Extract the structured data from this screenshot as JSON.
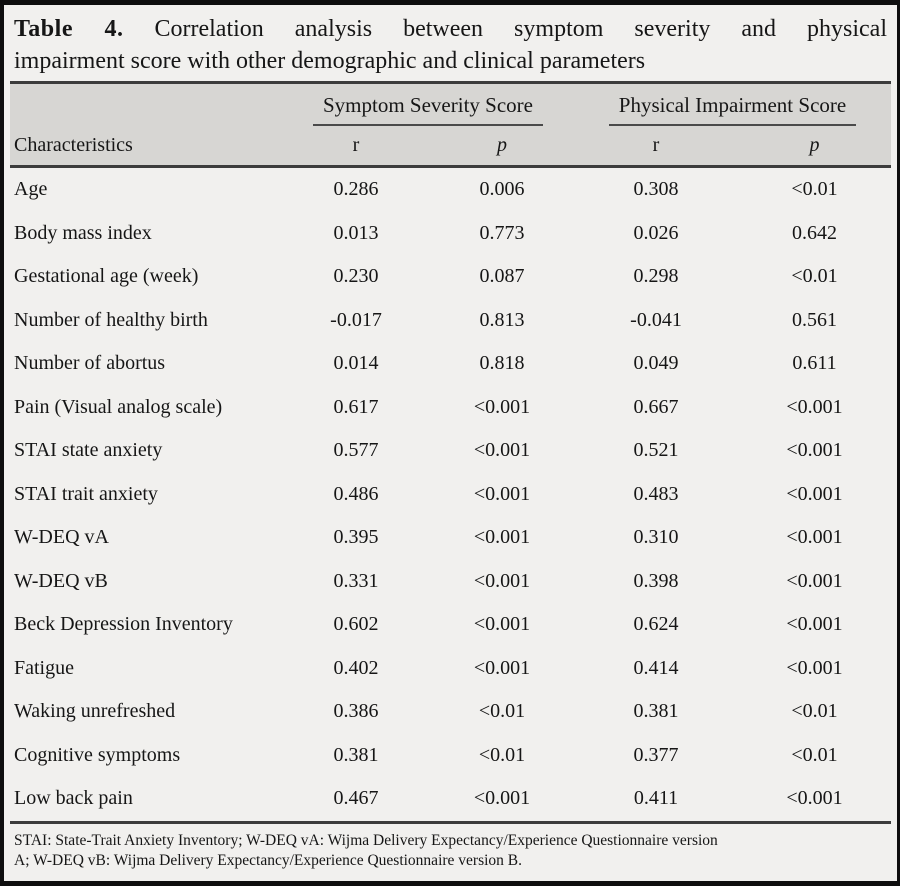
{
  "title": {
    "label": "Table 4.",
    "line1_rest": "Correlation analysis between symptom severity and physical",
    "line2": "impairment score with other demographic and clinical parameters"
  },
  "table": {
    "characteristics_header": "Characteristics",
    "groups": [
      {
        "label": "Symptom Severity Score",
        "sub": [
          "r",
          "p"
        ]
      },
      {
        "label": "Physical Impairment Score",
        "sub": [
          "r",
          "p"
        ]
      }
    ],
    "rows": [
      {
        "name": "Age",
        "values": [
          "0.286",
          "0.006",
          "0.308",
          "<0.01"
        ]
      },
      {
        "name": "Body mass index",
        "values": [
          "0.013",
          "0.773",
          "0.026",
          "0.642"
        ]
      },
      {
        "name": "Gestational age (week)",
        "values": [
          "0.230",
          "0.087",
          "0.298",
          "<0.01"
        ]
      },
      {
        "name": "Number of healthy birth",
        "values": [
          "-0.017",
          "0.813",
          "-0.041",
          "0.561"
        ]
      },
      {
        "name": "Number of abortus",
        "values": [
          "0.014",
          "0.818",
          "0.049",
          "0.611"
        ]
      },
      {
        "name": "Pain (Visual analog scale)",
        "values": [
          "0.617",
          "<0.001",
          "0.667",
          "<0.001"
        ]
      },
      {
        "name": "STAI state anxiety",
        "values": [
          "0.577",
          "<0.001",
          "0.521",
          "<0.001"
        ]
      },
      {
        "name": "STAI trait anxiety",
        "values": [
          "0.486",
          "<0.001",
          "0.483",
          "<0.001"
        ]
      },
      {
        "name": "W-DEQ vA",
        "values": [
          "0.395",
          "<0.001",
          "0.310",
          "<0.001"
        ]
      },
      {
        "name": "W-DEQ vB",
        "values": [
          "0.331",
          "<0.001",
          "0.398",
          "<0.001"
        ]
      },
      {
        "name": "Beck Depression Inventory",
        "values": [
          "0.602",
          "<0.001",
          "0.624",
          "<0.001"
        ]
      },
      {
        "name": "Fatigue",
        "values": [
          "0.402",
          "<0.001",
          "0.414",
          "<0.001"
        ]
      },
      {
        "name": "Waking unrefreshed",
        "values": [
          "0.386",
          "<0.01",
          "0.381",
          "<0.01"
        ]
      },
      {
        "name": "Cognitive symptoms",
        "values": [
          "0.381",
          "<0.01",
          "0.377",
          "<0.01"
        ]
      },
      {
        "name": "Low back pain",
        "values": [
          "0.467",
          "<0.001",
          "0.411",
          "<0.001"
        ]
      }
    ]
  },
  "footnote": {
    "line1": "STAI: State-Trait Anxiety Inventory; W-DEQ vA: Wijma Delivery Expectancy/Experience Questionnaire version",
    "line2": "A; W-DEQ vB: Wijma Delivery Expectancy/Experience Questionnaire version B."
  },
  "colors": {
    "page_bg": "#f1f0ee",
    "header_bg": "#d7d6d3",
    "rule": "#3c3c3c",
    "border": "#0e0e0e",
    "text": "#161616"
  }
}
